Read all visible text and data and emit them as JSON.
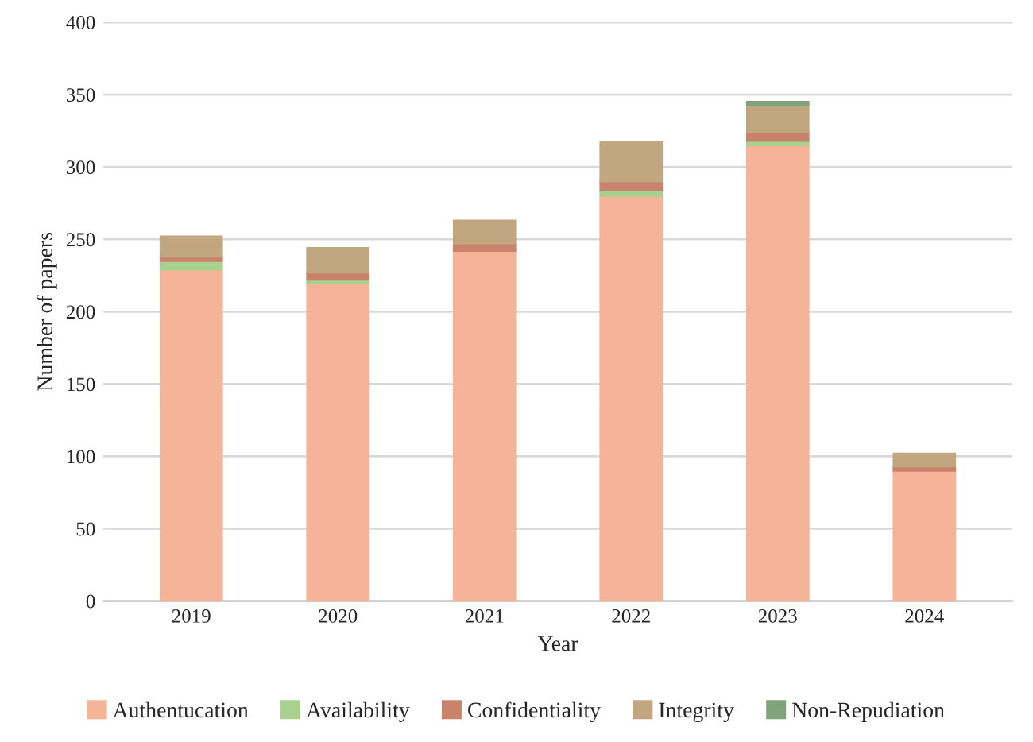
{
  "chart_data": {
    "type": "bar",
    "stacked": true,
    "xlabel": "Year",
    "ylabel": "Number of papers",
    "categories": [
      "2019",
      "2020",
      "2021",
      "2022",
      "2023",
      "2024"
    ],
    "series": [
      {
        "name": "Authentucation",
        "color": "#f5b497",
        "values": [
          229,
          220,
          242,
          280,
          315,
          90
        ]
      },
      {
        "name": "Availability",
        "color": "#a9d18e",
        "values": [
          6,
          2,
          0,
          4,
          3,
          0
        ]
      },
      {
        "name": "Confidentiality",
        "color": "#c9836d",
        "values": [
          3,
          5,
          5,
          6,
          6,
          3
        ]
      },
      {
        "name": "Integrity",
        "color": "#c2a680",
        "values": [
          14,
          17,
          16,
          27,
          19,
          9
        ]
      },
      {
        "name": "Non-Repudiation",
        "color": "#7fa37a",
        "values": [
          0,
          0,
          0,
          0,
          2,
          0
        ]
      }
    ],
    "ylim": [
      0,
      400
    ],
    "yticks": [
      0,
      50,
      100,
      150,
      200,
      250,
      300,
      350,
      400
    ],
    "grid": "y",
    "legend": "bottom"
  }
}
